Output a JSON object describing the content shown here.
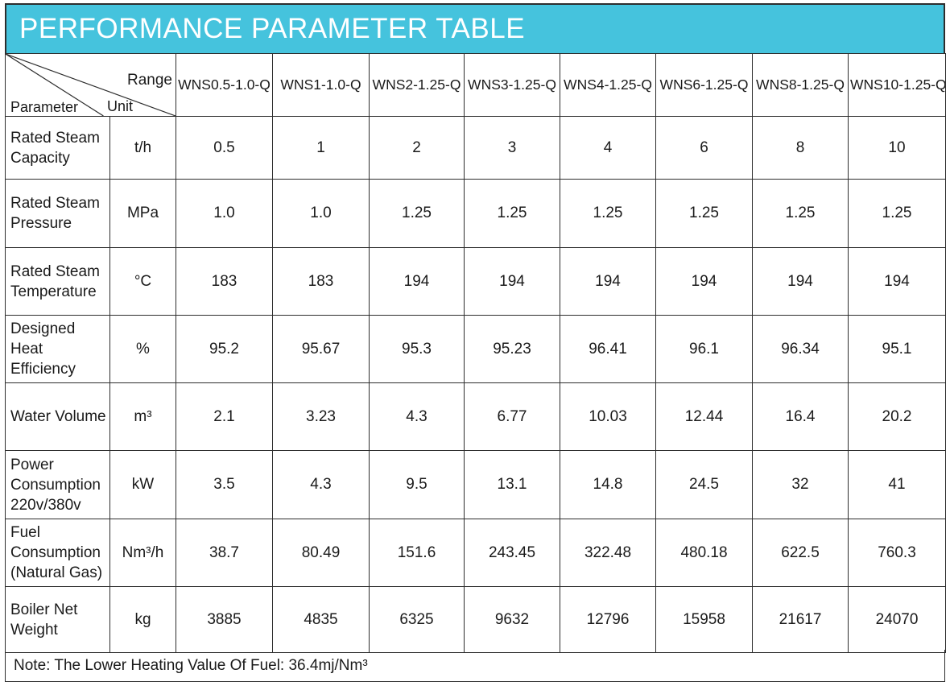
{
  "title": "PERFORMANCE PARAMETER TABLE",
  "header": {
    "range_label": "Range",
    "unit_label": "Unit",
    "parameter_label": "Parameter",
    "models": [
      "WNS0.5-1.0-Q",
      "WNS1-1.0-Q",
      "WNS2-1.25-Q",
      "WNS3-1.25-Q",
      "WNS4-1.25-Q",
      "WNS6-1.25-Q",
      "WNS8-1.25-Q",
      "WNS10-1.25-Q"
    ]
  },
  "rows": [
    {
      "name": "Rated Steam Capacity",
      "unit": "t/h",
      "values": [
        "0.5",
        "1",
        "2",
        "3",
        "4",
        "6",
        "8",
        "10"
      ]
    },
    {
      "name": "Rated Steam Pressure",
      "unit": "MPa",
      "values": [
        "1.0",
        "1.0",
        "1.25",
        "1.25",
        "1.25",
        "1.25",
        "1.25",
        "1.25"
      ]
    },
    {
      "name": "Rated Steam Temperature",
      "unit": "°C",
      "values": [
        "183",
        "183",
        "194",
        "194",
        "194",
        "194",
        "194",
        "194"
      ]
    },
    {
      "name": "Designed Heat Efficiency",
      "unit": "%",
      "values": [
        "95.2",
        "95.67",
        "95.3",
        "95.23",
        "96.41",
        "96.1",
        "96.34",
        "95.1"
      ]
    },
    {
      "name": "Water Volume",
      "unit": "m³",
      "values": [
        "2.1",
        "3.23",
        "4.3",
        "6.77",
        "10.03",
        "12.44",
        "16.4",
        "20.2"
      ]
    },
    {
      "name": "Power Consumption 220v/380v",
      "unit": "kW",
      "values": [
        "3.5",
        "4.3",
        "9.5",
        "13.1",
        "14.8",
        "24.5",
        "32",
        "41"
      ]
    },
    {
      "name": "Fuel Consumption (Natural Gas)",
      "unit": "Nm³/h",
      "values": [
        "38.7",
        "80.49",
        "151.6",
        "243.45",
        "322.48",
        "480.18",
        "622.5",
        "760.3"
      ]
    },
    {
      "name": "Boiler Net Weight",
      "unit": "kg",
      "values": [
        "3885",
        "4835",
        "6325",
        "9632",
        "12796",
        "15958",
        "21617",
        "24070"
      ]
    }
  ],
  "note": "Note: The Lower Heating Value Of Fuel: 36.4mj/Nm³",
  "colors": {
    "title_bg": "#45c3dd",
    "border": "#2d2d2d",
    "title_text": "#ffffff"
  }
}
